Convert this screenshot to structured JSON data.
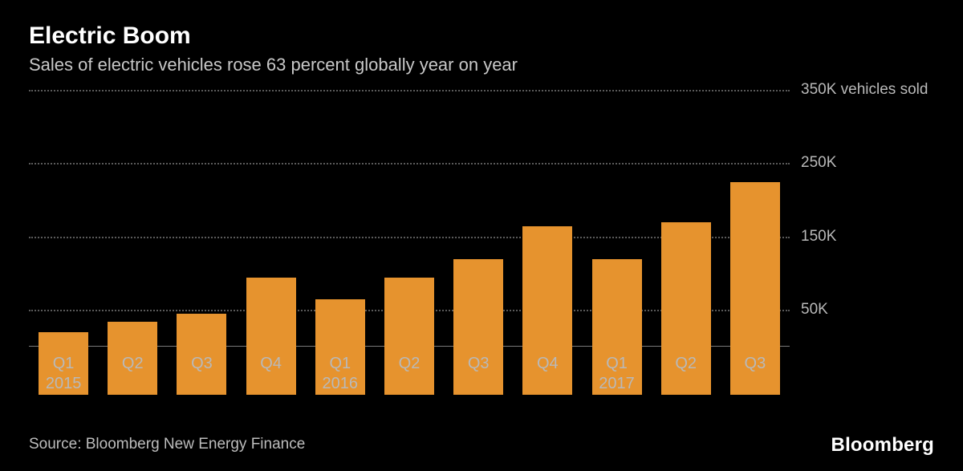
{
  "title": "Electric Boom",
  "subtitle": "Sales of electric vehicles rose 63 percent globally year on year",
  "source": "Source: Bloomberg New Energy Finance",
  "brand": "Bloomberg",
  "chart": {
    "type": "bar",
    "background_color": "#000000",
    "bar_color": "#e6932e",
    "grid_color": "#5a5a5a",
    "axis_color": "#7a7a7a",
    "text_color": "#b9b9b9",
    "title_color": "#ffffff",
    "title_fontsize": 30,
    "subtitle_fontsize": 22,
    "label_fontsize": 20,
    "tick_fontsize": 19,
    "ylim": [
      0,
      350
    ],
    "yticks": [
      50,
      150,
      250,
      350
    ],
    "ytick_labels": [
      "50K",
      "150K",
      "250K",
      "350K vehicles sold"
    ],
    "bar_width_ratio": 0.72,
    "categories": [
      {
        "q": "Q1",
        "year": "2015"
      },
      {
        "q": "Q2",
        "year": ""
      },
      {
        "q": "Q3",
        "year": ""
      },
      {
        "q": "Q4",
        "year": ""
      },
      {
        "q": "Q1",
        "year": "2016"
      },
      {
        "q": "Q2",
        "year": ""
      },
      {
        "q": "Q3",
        "year": ""
      },
      {
        "q": "Q4",
        "year": ""
      },
      {
        "q": "Q1",
        "year": "2017"
      },
      {
        "q": "Q2",
        "year": ""
      },
      {
        "q": "Q3",
        "year": ""
      }
    ],
    "values": [
      85,
      100,
      110,
      160,
      130,
      160,
      185,
      230,
      185,
      235,
      290
    ]
  }
}
